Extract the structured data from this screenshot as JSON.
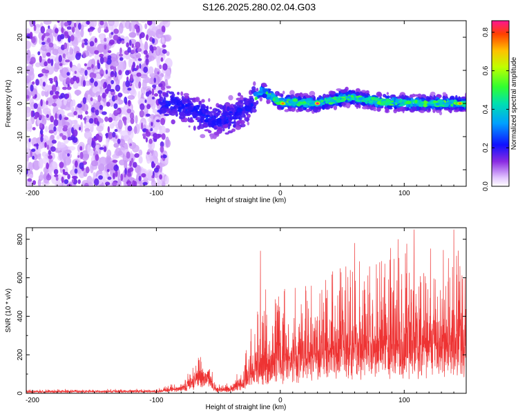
{
  "title": "S126.2025.280.02.04.G03",
  "chart_data": [
    {
      "type": "heatmap",
      "name": "spectrogram",
      "xlabel": "Height of straight line (km)",
      "ylabel": "Frequency (Hz)",
      "xlim": [
        -205,
        150
      ],
      "ylim": [
        -25,
        25
      ],
      "xticks": [
        -200,
        -100,
        0,
        100
      ],
      "yticks": [
        -20,
        -10,
        0,
        10,
        20
      ],
      "colorbar": {
        "label": "Normalized spectral amplitude",
        "ticks": [
          0.0,
          0.2,
          0.4,
          0.6,
          0.8
        ],
        "range": [
          0.0,
          0.86
        ]
      },
      "features": {
        "noise_region_x": [
          -205,
          -95
        ],
        "signal_center_hz": [
          {
            "x": -95,
            "y": 0.5
          },
          {
            "x": -80,
            "y": -1
          },
          {
            "x": -65,
            "y": -3
          },
          {
            "x": -55,
            "y": -5
          },
          {
            "x": -40,
            "y": -4
          },
          {
            "x": -25,
            "y": -1
          },
          {
            "x": -15,
            "y": 4
          },
          {
            "x": 0,
            "y": 0.5
          },
          {
            "x": 30,
            "y": 0
          },
          {
            "x": 55,
            "y": 2
          },
          {
            "x": 80,
            "y": 0.5
          },
          {
            "x": 110,
            "y": 0
          },
          {
            "x": 145,
            "y": 0
          }
        ],
        "peak_points": [
          {
            "x": 2,
            "y": 0,
            "amp": 0.75
          },
          {
            "x": 30,
            "y": 0,
            "amp": 0.86
          },
          {
            "x": 145,
            "y": 0,
            "amp": 0.75
          }
        ]
      }
    },
    {
      "type": "line",
      "name": "snr",
      "xlabel": "Height of straight line (km)",
      "ylabel": "SNR (10 * v/v)",
      "xlim": [
        -205,
        150
      ],
      "ylim": [
        0,
        860
      ],
      "xticks": [
        -200,
        -100,
        0,
        100
      ],
      "yticks": [
        0,
        200,
        400,
        600,
        800
      ],
      "color": "#ee3333",
      "envelope": [
        {
          "x": -205,
          "base": 8,
          "amp": 15
        },
        {
          "x": -100,
          "base": 10,
          "amp": 15
        },
        {
          "x": -85,
          "base": 20,
          "amp": 40
        },
        {
          "x": -75,
          "base": 35,
          "amp": 70
        },
        {
          "x": -62,
          "base": 80,
          "amp": 170
        },
        {
          "x": -57,
          "base": 60,
          "amp": 130
        },
        {
          "x": -52,
          "base": 15,
          "amp": 30
        },
        {
          "x": -40,
          "base": 20,
          "amp": 50
        },
        {
          "x": -30,
          "base": 50,
          "amp": 120
        },
        {
          "x": -25,
          "base": 80,
          "amp": 250
        },
        {
          "x": -15,
          "base": 120,
          "amp": 450
        },
        {
          "x": 0,
          "base": 150,
          "amp": 420
        },
        {
          "x": 20,
          "base": 180,
          "amp": 480
        },
        {
          "x": 40,
          "base": 200,
          "amp": 520
        },
        {
          "x": 60,
          "base": 230,
          "amp": 550
        },
        {
          "x": 90,
          "base": 220,
          "amp": 580
        },
        {
          "x": 110,
          "base": 230,
          "amp": 600
        },
        {
          "x": 150,
          "base": 220,
          "amp": 600
        }
      ],
      "spikes": [
        {
          "x": -16,
          "y": 740
        },
        {
          "x": 60,
          "y": 780
        },
        {
          "x": 95,
          "y": 800
        },
        {
          "x": 108,
          "y": 850
        },
        {
          "x": 140,
          "y": 850
        }
      ]
    }
  ]
}
